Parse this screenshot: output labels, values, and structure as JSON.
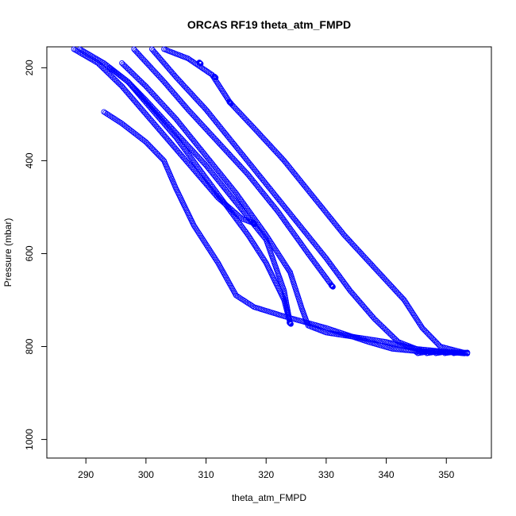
{
  "chart_data": {
    "type": "scatter",
    "title": "ORCAS RF19 theta_atm_FMPD",
    "xlabel": "theta_atm_FMPD",
    "ylabel": "Pressure (mbar)",
    "xlim": [
      283.5,
      357.5
    ],
    "ylim": [
      1040,
      155
    ],
    "y_reversed": true,
    "x_ticks": [
      290,
      300,
      310,
      320,
      330,
      340,
      350
    ],
    "y_ticks": [
      200,
      400,
      600,
      800,
      1000
    ],
    "grid": false,
    "legend": "none",
    "marker": "open-circle",
    "marker_color": "#0000ff",
    "series": [
      {
        "x": [
          293.0,
          296.0,
          300.0,
          303.0,
          305.0,
          308.0,
          312.0,
          315.0,
          318.0,
          323.0,
          330.0,
          337.0,
          341.0,
          345.0,
          350.0,
          353.5
        ],
        "y": [
          295,
          320,
          360,
          400,
          460,
          540,
          620,
          690,
          715,
          735,
          760,
          790,
          805,
          810,
          812,
          813
        ]
      },
      {
        "x": [
          288.0,
          292.0,
          296.0,
          300.0,
          304.0,
          308.0,
          312.0,
          316.0,
          318.0
        ],
        "y": [
          160,
          190,
          240,
          300,
          360,
          420,
          480,
          525,
          535
        ]
      },
      {
        "x": [
          289.0,
          293.0,
          297.0,
          301.0,
          305.0,
          309.0,
          313.0,
          317.0,
          320.0,
          323.0,
          324.0
        ],
        "y": [
          160,
          190,
          230,
          290,
          350,
          420,
          490,
          560,
          620,
          700,
          750
        ]
      },
      {
        "x": [
          294.0,
          297.0,
          300.0,
          305.0,
          310.0,
          315.0,
          320.0,
          323.0,
          324.0
        ],
        "y": [
          200,
          230,
          270,
          340,
          410,
          490,
          570,
          680,
          750
        ]
      },
      {
        "x": [
          296.0,
          300.0,
          305.0,
          310.0,
          315.0,
          320.0,
          324.0,
          326.0,
          327.0,
          330.0,
          335.0,
          340.0,
          345.0,
          353.0
        ],
        "y": [
          190,
          240,
          310,
          390,
          470,
          560,
          640,
          720,
          755,
          770,
          780,
          790,
          805,
          815
        ]
      },
      {
        "x": [
          298.0,
          303.0,
          307.0,
          312.0,
          317.0,
          322.0,
          327.0,
          331.0
        ],
        "y": [
          160,
          230,
          290,
          360,
          430,
          510,
          600,
          670
        ]
      },
      {
        "x": [
          301.0,
          305.0,
          310.0,
          315.0,
          320.0,
          325.0,
          330.0,
          334.0,
          338.0,
          342.0,
          346.0,
          353.5
        ],
        "y": [
          160,
          220,
          290,
          370,
          450,
          530,
          610,
          680,
          740,
          790,
          810,
          814
        ]
      },
      {
        "x": [
          303.0,
          307.0,
          311.0,
          314.0,
          318.0,
          323.0,
          328.0,
          333.0,
          338.0,
          343.0,
          346.0,
          349.0,
          353.5
        ],
        "y": [
          160,
          180,
          215,
          275,
          330,
          400,
          480,
          560,
          630,
          700,
          760,
          800,
          815
        ]
      }
    ],
    "dense_points": [
      {
        "x": 324.0,
        "y": 750
      },
      {
        "x": 318.0,
        "y": 535
      },
      {
        "x": 331.0,
        "y": 670
      },
      {
        "x": 314.0,
        "y": 275
      },
      {
        "x": 311.5,
        "y": 220
      },
      {
        "x": 309.0,
        "y": 190
      }
    ]
  }
}
